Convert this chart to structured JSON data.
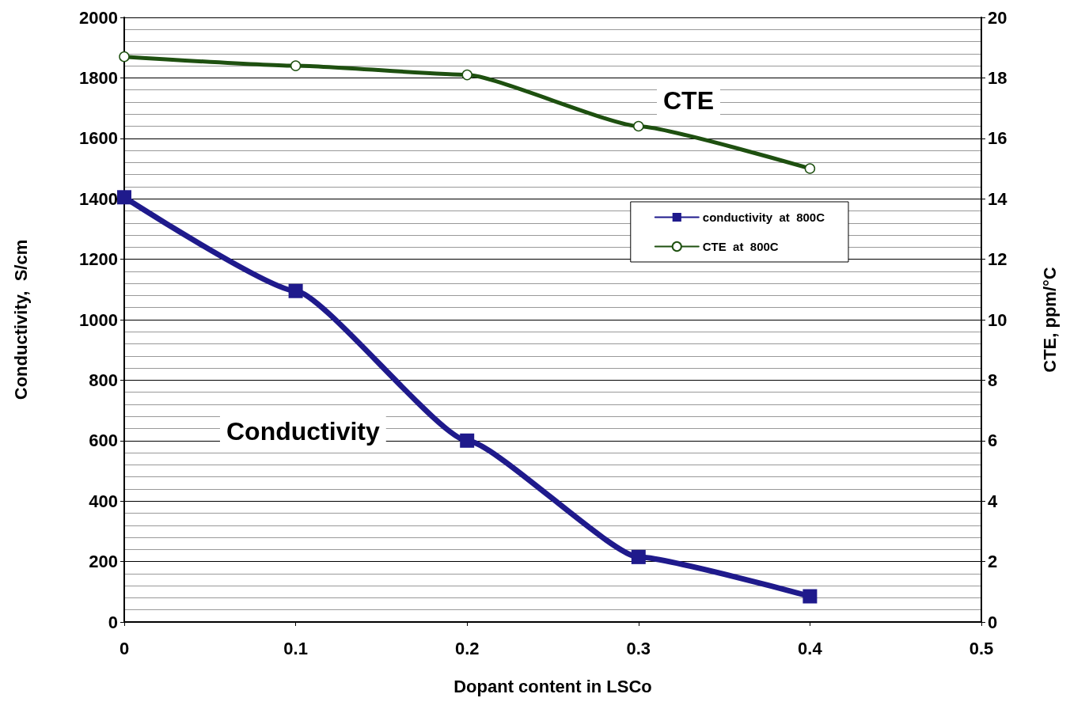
{
  "chart_data": {
    "type": "line",
    "xlabel": "Dopant content in LSCo",
    "ylabel": "Conductivity,  S/cm",
    "y2label": "CTE, ppm/°C",
    "x": [
      0,
      0.1,
      0.2,
      0.3,
      0.4
    ],
    "series": [
      {
        "name": "conductivity  at  800C",
        "color": "#1f1a8c",
        "marker": "square",
        "values": [
          1405,
          1095,
          600,
          215,
          85
        ]
      },
      {
        "name": "CTE  at  800C",
        "color": "#1e5010",
        "marker": "circle",
        "axis": "y2",
        "values": [
          18.7,
          18.4,
          18.1,
          16.4,
          15.0
        ]
      }
    ],
    "xlim": [
      0,
      0.5
    ],
    "xticks": [
      0,
      0.1,
      0.2,
      0.3,
      0.4,
      0.5
    ],
    "ylim": [
      0,
      2000
    ],
    "yticks": [
      0,
      200,
      400,
      600,
      800,
      1000,
      1200,
      1400,
      1600,
      1800,
      2000
    ],
    "y2lim": [
      0,
      20
    ],
    "y2ticks": [
      0,
      2,
      4,
      6,
      8,
      10,
      12,
      14,
      16,
      18,
      20
    ],
    "annotations": [
      "CTE",
      "Conductivity"
    ],
    "grid": "y",
    "legend": "right",
    "line_style": "solid"
  }
}
